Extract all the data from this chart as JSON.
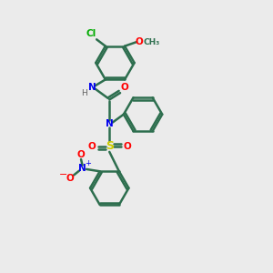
{
  "background_color": "#ebebeb",
  "bond_color": "#2d6e4e",
  "bond_width": 1.8,
  "atom_colors": {
    "C": "#2d6e4e",
    "N": "#0000ee",
    "O": "#ff0000",
    "S": "#cccc00",
    "Cl": "#00aa00",
    "H": "#606060"
  },
  "figsize": [
    3.0,
    3.0
  ],
  "dpi": 100
}
